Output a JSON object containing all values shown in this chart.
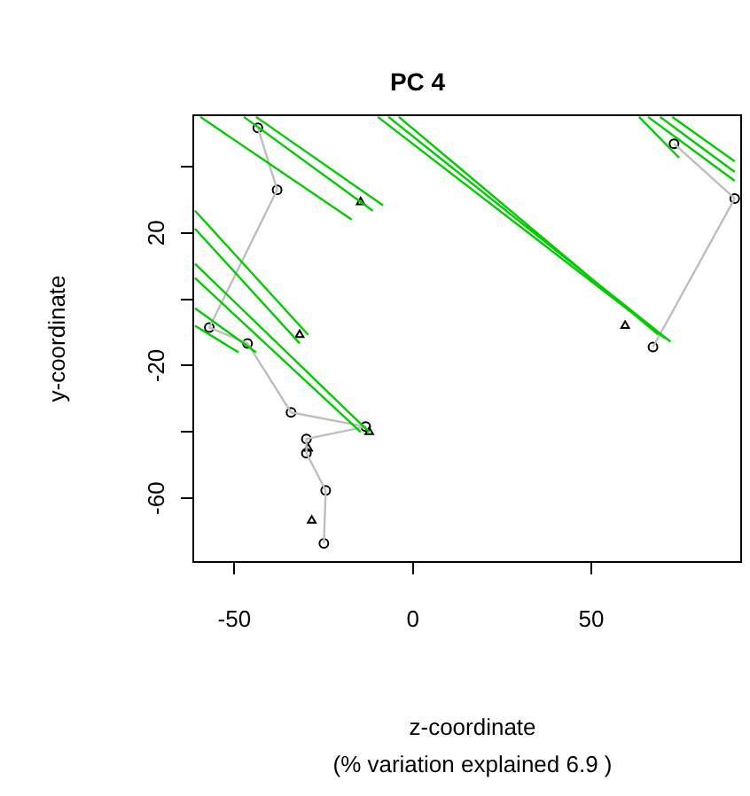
{
  "chart_data": {
    "type": "line",
    "title": "PC 4",
    "xlabel": "z-coordinate\n(% variation explained 6.9 )",
    "ylabel": "y-coordinate",
    "xlim": [
      -61.5,
      92
    ],
    "ylim": [
      -79.2,
      55.5
    ],
    "xticks": [
      -50,
      0,
      50
    ],
    "yticks": [
      {
        "value": 40,
        "label": null
      },
      20,
      {
        "value": 0,
        "label": null
      },
      -20,
      {
        "value": -40,
        "label": null
      },
      -60
    ],
    "grid": false,
    "legend": false,
    "series": [
      {
        "type": "line",
        "color": "#00cc00",
        "marker": "none",
        "x": [
          -59.5,
          -17.1,
          null,
          -47.3,
          -11.2,
          null,
          -43.9,
          -8.3,
          null,
          -61,
          -29.3,
          null,
          -61,
          -31.7,
          null,
          -61,
          -12.2,
          null,
          -61,
          -14.6,
          null,
          -61,
          -43.9,
          null,
          -61,
          -48.8,
          null,
          -9.8,
          70.7,
          null,
          -6.8,
          72.2,
          null,
          -3.9,
          68.8,
          null,
          65.9,
          90.2,
          null,
          69.3,
          90.2,
          null,
          72.7,
          90.2,
          null,
          63.4,
          74.6
        ],
        "values": [
          55,
          24,
          null,
          55,
          26.7,
          null,
          55,
          28.3,
          null,
          26.7,
          -10.7,
          null,
          21.3,
          -13.3,
          null,
          10.7,
          -40,
          null,
          6.4,
          -40,
          null,
          -2.7,
          -16,
          null,
          -8,
          -16,
          null,
          55,
          -11.7,
          null,
          55,
          -12.8,
          null,
          55,
          -10.7,
          null,
          55,
          35.7,
          null,
          55,
          38.4,
          null,
          55,
          41.6,
          null,
          55,
          42.7
        ]
      },
      {
        "type": "line",
        "color": "#bebebe",
        "marker": "none",
        "x": [
          -43.4,
          -38,
          -57,
          -46.3,
          -34.1,
          -13.2,
          -29.8,
          -29.8,
          -24.4,
          -24.9
        ],
        "values": [
          51.7,
          33,
          -8.5,
          -13.3,
          -34.1,
          -38.4,
          -42.1,
          -46.4,
          -57.6,
          -73.6
        ]
      },
      {
        "type": "line",
        "color": "#bebebe",
        "marker": "none",
        "x": [
          73.2,
          90.2,
          67.3
        ],
        "values": [
          46.9,
          30.4,
          -14.4
        ]
      },
      {
        "type": "scatter",
        "color": "#000000",
        "marker": "circle",
        "x": [
          -43.4,
          -38,
          -57,
          -46.3,
          -34.1,
          -13.2,
          -29.8,
          -29.8,
          -24.4,
          -24.9,
          73.2,
          90.2,
          67.3
        ],
        "values": [
          51.7,
          33,
          -8.5,
          -13.3,
          -34.1,
          -38.4,
          -42.1,
          -46.4,
          -57.6,
          -73.6,
          46.9,
          30.4,
          -14.4
        ]
      },
      {
        "type": "scatter",
        "color": "#000000",
        "marker": "triangle",
        "x": [
          -14.6,
          -31.7,
          59.5,
          -12.2,
          -29.3,
          -28.3
        ],
        "values": [
          29.3,
          -10.7,
          -8,
          -40,
          -45,
          -66.7
        ]
      }
    ]
  }
}
